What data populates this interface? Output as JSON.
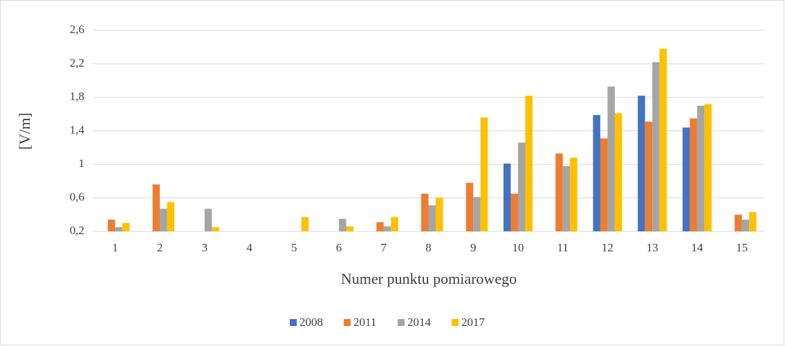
{
  "chart_data": {
    "type": "bar",
    "y_label": "[V/m]",
    "x_label": "Numer punktu pomiarowego",
    "categories": [
      "1",
      "2",
      "3",
      "4",
      "5",
      "6",
      "7",
      "8",
      "9",
      "10",
      "11",
      "12",
      "13",
      "14",
      "15"
    ],
    "series": [
      {
        "name": "2008",
        "color": "#4472c4",
        "values": [
          null,
          null,
          null,
          null,
          null,
          null,
          null,
          null,
          null,
          1.01,
          null,
          1.59,
          1.82,
          1.44,
          null
        ]
      },
      {
        "name": "2011",
        "color": "#ed7d31",
        "values": [
          0.34,
          0.76,
          null,
          null,
          null,
          null,
          0.31,
          0.65,
          0.78,
          0.65,
          1.13,
          1.31,
          1.51,
          1.55,
          0.4
        ]
      },
      {
        "name": "2014",
        "color": "#a5a5a5",
        "values": [
          0.25,
          0.47,
          0.47,
          null,
          null,
          0.35,
          0.26,
          0.51,
          0.61,
          1.26,
          0.98,
          1.93,
          2.22,
          1.7,
          0.34
        ]
      },
      {
        "name": "2017",
        "color": "#ffc000",
        "values": [
          0.3,
          0.55,
          0.25,
          null,
          0.37,
          0.26,
          0.37,
          0.6,
          1.56,
          1.82,
          1.08,
          1.61,
          2.38,
          1.72,
          0.43
        ]
      }
    ],
    "ylim": [
      0.2,
      2.6
    ],
    "yticks": [
      {
        "value": 0.2,
        "label": "0,2"
      },
      {
        "value": 0.6,
        "label": "0,6"
      },
      1,
      {
        "value": 1.4,
        "label": "1,4"
      },
      {
        "value": 1.8,
        "label": "1,8"
      },
      {
        "value": 2.2,
        "label": "2,2"
      },
      {
        "value": 2.6,
        "label": "2,6"
      }
    ],
    "grid": true,
    "legend": "bottom"
  }
}
